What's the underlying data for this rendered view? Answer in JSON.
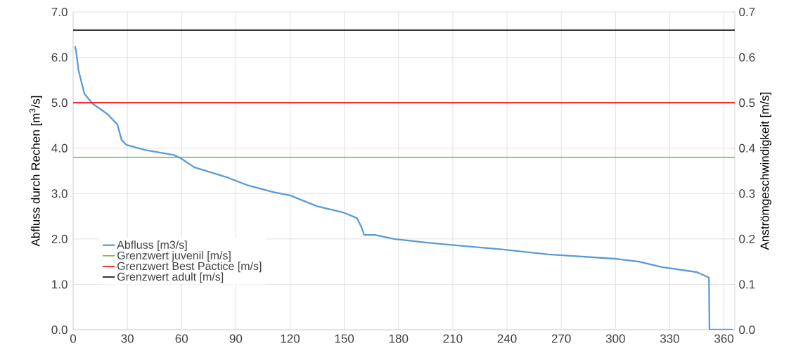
{
  "chart_data": {
    "type": "line",
    "ylabel": "Abfluss durch Rechen [m$^{3}$/s]",
    "y2label": "Anströmgeschwindigkeit [m/s]",
    "xlim": [
      0,
      366
    ],
    "xticks": [
      0,
      30,
      60,
      90,
      120,
      150,
      180,
      210,
      240,
      270,
      300,
      330,
      360
    ],
    "ylim": [
      0,
      7
    ],
    "yticks": [
      {
        "value": 0,
        "label": "0.0"
      },
      {
        "value": 1,
        "label": "1.0"
      },
      {
        "value": 2,
        "label": "2.0"
      },
      {
        "value": 3,
        "label": "3.0"
      },
      {
        "value": 4,
        "label": "4.0"
      },
      {
        "value": 5,
        "label": "5.0"
      },
      {
        "value": 6,
        "label": "6.0"
      },
      {
        "value": 7,
        "label": "7.0"
      }
    ],
    "y2lim": [
      0,
      0.7
    ],
    "y2ticks": [
      {
        "value": 0,
        "label": "0.0"
      },
      0.1,
      0.2,
      0.3,
      0.4,
      0.5,
      0.6,
      0.7
    ],
    "grid": true,
    "legend": "bottom left",
    "series": [
      {
        "name": "Abfluss [m3/s]",
        "color": "#5b9bd5",
        "x": [
          1,
          1.6,
          3,
          6.2,
          10.8,
          19,
          24.5,
          26.8,
          29.6,
          40,
          55.6,
          59.5,
          67,
          85,
          96,
          111,
          120,
          135,
          149,
          157,
          159.5,
          161,
          167,
          177.6,
          196,
          211.5,
          237,
          263,
          271,
          301,
          313,
          325.7,
          345,
          351.7,
          352,
          365
        ],
        "values": [
          6.25,
          6.15,
          5.71,
          5.2,
          4.98,
          4.75,
          4.52,
          4.18,
          4.07,
          3.96,
          3.85,
          3.78,
          3.58,
          3.36,
          3.19,
          3.03,
          2.96,
          2.72,
          2.59,
          2.46,
          2.26,
          2.09,
          2.09,
          2.0,
          1.92,
          1.86,
          1.77,
          1.66,
          1.64,
          1.56,
          1.5,
          1.38,
          1.27,
          1.15,
          0,
          0
        ]
      },
      {
        "name": "Grenzwert juvenil [m/s]",
        "color": "#70ad47",
        "axis": "y2",
        "x": [
          0,
          366
        ],
        "values": [
          0.38,
          0.38
        ]
      },
      {
        "name": "Grenzwert Best Pactice [m/s]",
        "color": "#ff0000",
        "axis": "y2",
        "x": [
          0,
          366
        ],
        "values": [
          0.5,
          0.5
        ]
      },
      {
        "name": "Grenzwert adult [m/s]",
        "color": "#000000",
        "axis": "y2",
        "x": [
          0,
          366
        ],
        "values": [
          0.66,
          0.66
        ]
      }
    ]
  }
}
